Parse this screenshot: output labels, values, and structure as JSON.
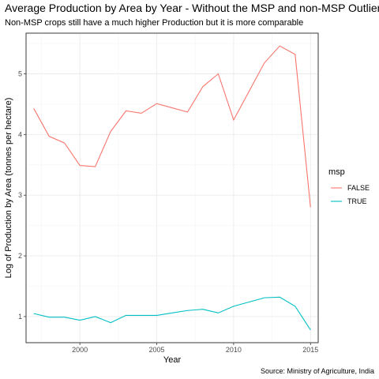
{
  "chart_data": {
    "type": "line",
    "title": "Average Production by Area by Year - Without the MSP and non-MSP Outliers",
    "subtitle": "Non-MSP crops still have a much higher Production but it is more comparable",
    "xlabel": "Year",
    "ylabel": "Log of Production by Area (tonnes per hectare)",
    "caption": "Source: Ministry of Agriculture, India",
    "xlim": [
      1996.5,
      2015.5
    ],
    "ylim": [
      0.57,
      5.67
    ],
    "x_ticks": [
      2000,
      2005,
      2010,
      2015
    ],
    "y_ticks": [
      1,
      2,
      3,
      4,
      5
    ],
    "grid": true,
    "legend": {
      "title": "msp",
      "position": "right"
    },
    "x": [
      1997,
      1998,
      1999,
      2000,
      2001,
      2002,
      2003,
      2004,
      2005,
      2006,
      2007,
      2008,
      2009,
      2010,
      2011,
      2012,
      2013,
      2014,
      2015
    ],
    "series": [
      {
        "name": "FALSE",
        "color": "#F8766D",
        "values": [
          4.43,
          3.97,
          3.86,
          3.49,
          3.47,
          4.05,
          4.39,
          4.35,
          4.51,
          4.44,
          4.37,
          4.79,
          5.0,
          4.24,
          4.71,
          5.18,
          5.46,
          5.32,
          2.8
        ]
      },
      {
        "name": "TRUE",
        "color": "#00BFC4",
        "values": [
          1.05,
          0.99,
          0.99,
          0.94,
          1.0,
          0.9,
          1.02,
          1.02,
          1.02,
          1.06,
          1.1,
          1.12,
          1.06,
          1.17,
          1.24,
          1.31,
          1.32,
          1.17,
          0.78
        ]
      }
    ]
  }
}
